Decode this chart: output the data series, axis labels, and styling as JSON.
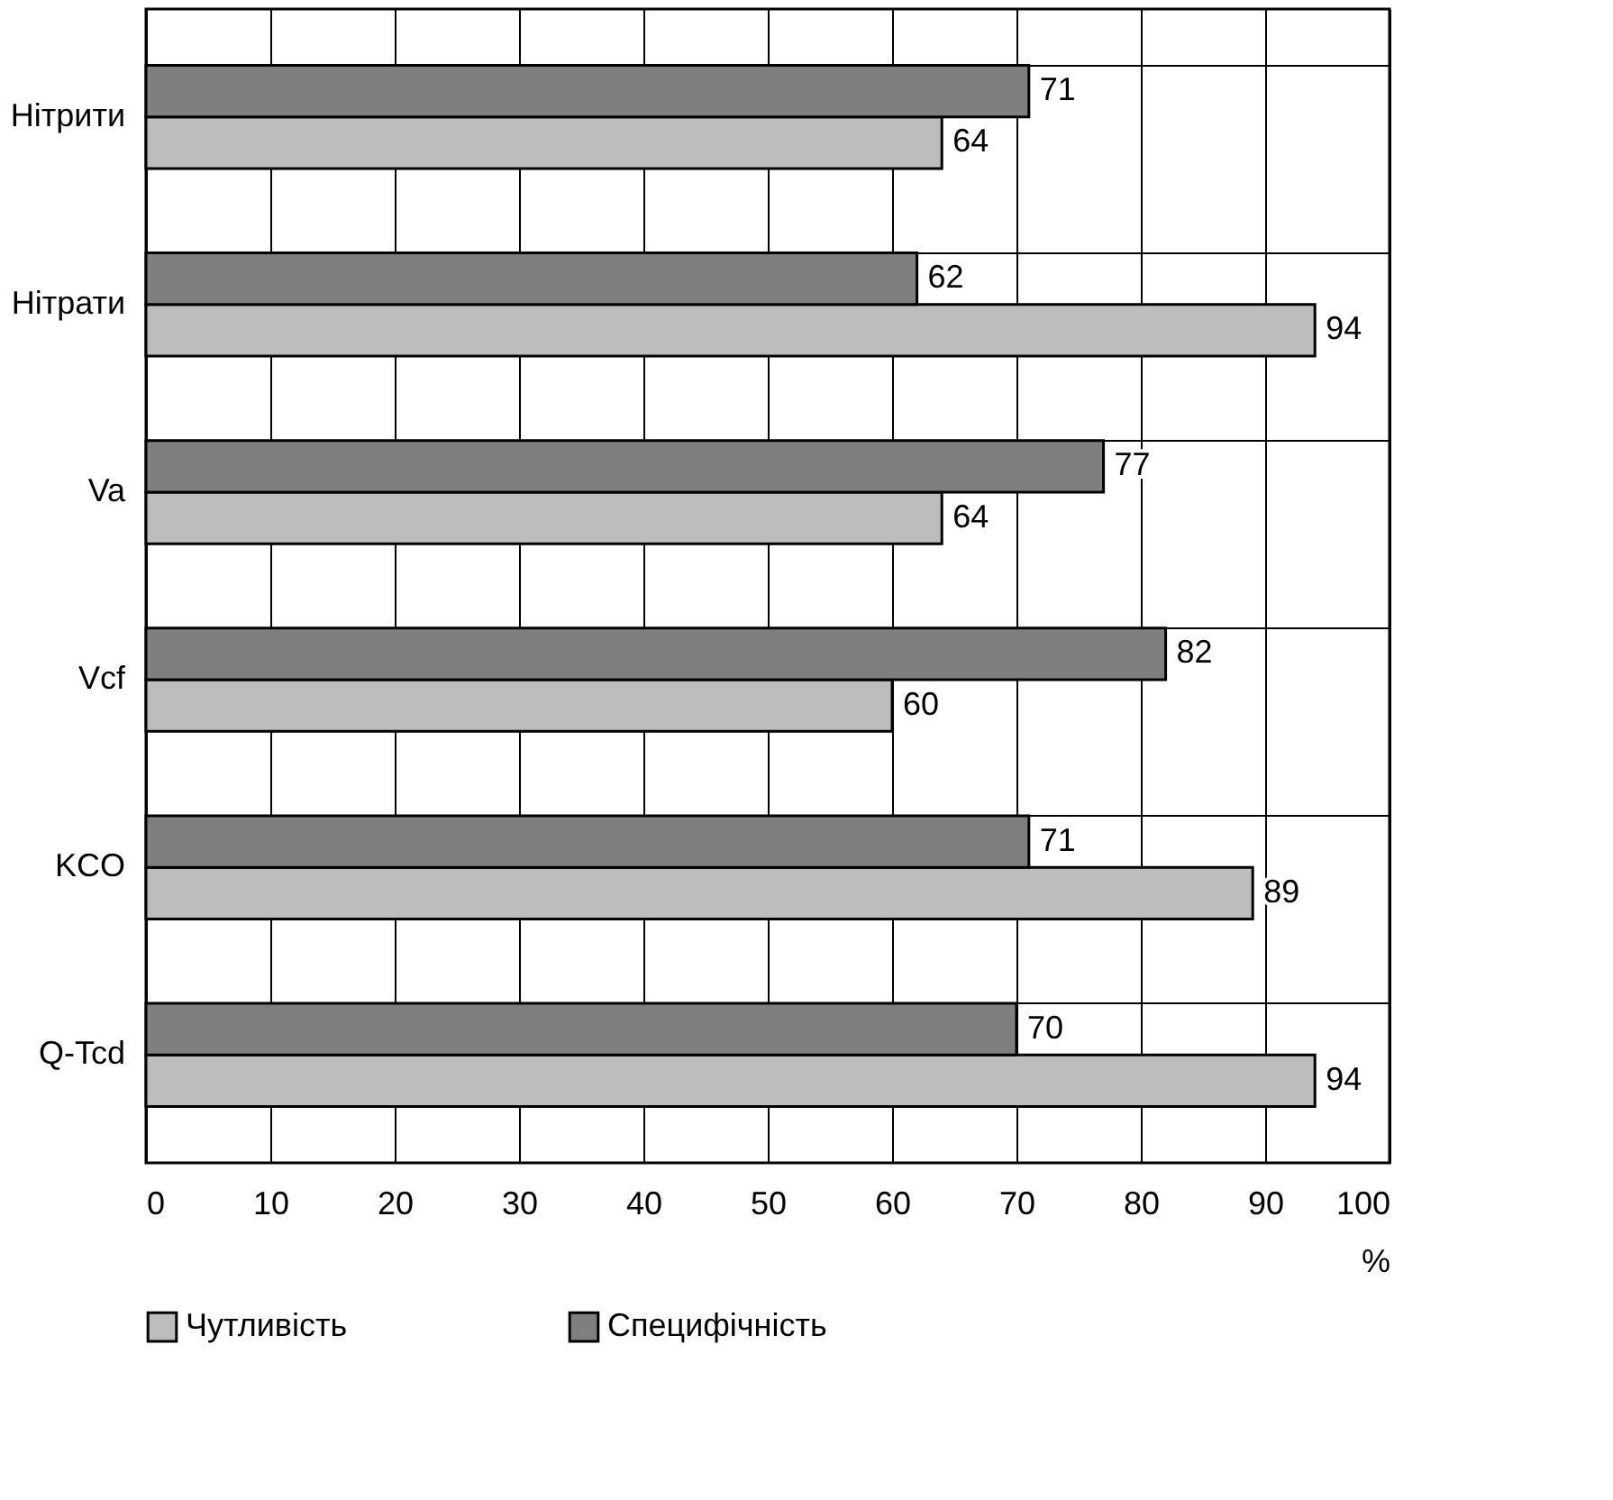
{
  "chart_data": {
    "type": "bar",
    "orientation": "horizontal",
    "categories": [
      "Нітрити",
      "Нітрати",
      "Va",
      "Vcf",
      "KCO",
      "Q-Tcd"
    ],
    "series": [
      {
        "name": "Чутливість",
        "color": "#bdbdbd",
        "values": [
          64,
          94,
          64,
          60,
          89,
          94
        ]
      },
      {
        "name": "Специфічність",
        "color": "#7f7f7f",
        "values": [
          71,
          62,
          77,
          82,
          71,
          70
        ]
      }
    ],
    "xlim": [
      0,
      100
    ],
    "xticks": [
      0,
      10,
      20,
      30,
      40,
      50,
      60,
      70,
      80,
      90,
      100
    ],
    "xlabel": "%",
    "grid": true,
    "legend": "bottom",
    "data_labels": true
  }
}
